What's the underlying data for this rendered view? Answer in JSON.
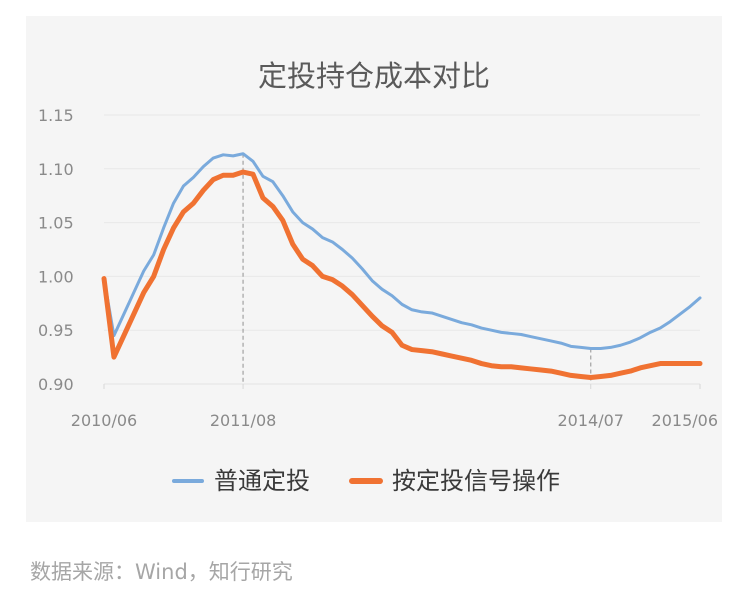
{
  "chart_data": {
    "type": "line",
    "title": "定投持仓成本对比",
    "xlabel": "",
    "ylabel": "",
    "ylim": [
      0.9,
      1.15
    ],
    "yticks": [
      "1.15",
      "1.10",
      "1.05",
      "1.00",
      "0.95",
      "0.90"
    ],
    "xrange": [
      "2010-06",
      "2015-06"
    ],
    "xtick_labels": [
      "2010/06",
      "2011/08",
      "2014/07",
      "2015/06"
    ],
    "grid": true,
    "legend_position": "bottom",
    "series": [
      {
        "name": "普通定投",
        "color": "#7aaadc",
        "points": [
          [
            "2010-06",
            0.998
          ],
          [
            "2010-07",
            0.945
          ],
          [
            "2010-08",
            0.965
          ],
          [
            "2010-09",
            0.985
          ],
          [
            "2010-10",
            1.005
          ],
          [
            "2010-11",
            1.02
          ],
          [
            "2010-12",
            1.045
          ],
          [
            "2011-01",
            1.068
          ],
          [
            "2011-02",
            1.084
          ],
          [
            "2011-03",
            1.092
          ],
          [
            "2011-04",
            1.102
          ],
          [
            "2011-05",
            1.11
          ],
          [
            "2011-06",
            1.113
          ],
          [
            "2011-07",
            1.112
          ],
          [
            "2011-08",
            1.114
          ],
          [
            "2011-09",
            1.107
          ],
          [
            "2011-10",
            1.093
          ],
          [
            "2011-11",
            1.088
          ],
          [
            "2011-12",
            1.075
          ],
          [
            "2012-01",
            1.06
          ],
          [
            "2012-02",
            1.05
          ],
          [
            "2012-03",
            1.044
          ],
          [
            "2012-04",
            1.036
          ],
          [
            "2012-05",
            1.032
          ],
          [
            "2012-06",
            1.025
          ],
          [
            "2012-07",
            1.017
          ],
          [
            "2012-08",
            1.007
          ],
          [
            "2012-09",
            0.996
          ],
          [
            "2012-10",
            0.988
          ],
          [
            "2012-11",
            0.982
          ],
          [
            "2012-12",
            0.974
          ],
          [
            "2013-01",
            0.969
          ],
          [
            "2013-02",
            0.967
          ],
          [
            "2013-03",
            0.966
          ],
          [
            "2013-04",
            0.963
          ],
          [
            "2013-05",
            0.96
          ],
          [
            "2013-06",
            0.957
          ],
          [
            "2013-07",
            0.955
          ],
          [
            "2013-08",
            0.952
          ],
          [
            "2013-09",
            0.95
          ],
          [
            "2013-10",
            0.948
          ],
          [
            "2013-11",
            0.947
          ],
          [
            "2013-12",
            0.946
          ],
          [
            "2014-01",
            0.944
          ],
          [
            "2014-02",
            0.942
          ],
          [
            "2014-03",
            0.94
          ],
          [
            "2014-04",
            0.938
          ],
          [
            "2014-05",
            0.935
          ],
          [
            "2014-06",
            0.934
          ],
          [
            "2014-07",
            0.933
          ],
          [
            "2014-08",
            0.933
          ],
          [
            "2014-09",
            0.934
          ],
          [
            "2014-10",
            0.936
          ],
          [
            "2014-11",
            0.939
          ],
          [
            "2014-12",
            0.943
          ],
          [
            "2015-01",
            0.948
          ],
          [
            "2015-02",
            0.952
          ],
          [
            "2015-03",
            0.958
          ],
          [
            "2015-04",
            0.965
          ],
          [
            "2015-05",
            0.972
          ],
          [
            "2015-06",
            0.98
          ]
        ]
      },
      {
        "name": "按定投信号操作",
        "color": "#f07232",
        "points": [
          [
            "2010-06",
            0.998
          ],
          [
            "2010-07",
            0.925
          ],
          [
            "2010-08",
            0.945
          ],
          [
            "2010-09",
            0.965
          ],
          [
            "2010-10",
            0.985
          ],
          [
            "2010-11",
            1.0
          ],
          [
            "2010-12",
            1.025
          ],
          [
            "2011-01",
            1.045
          ],
          [
            "2011-02",
            1.06
          ],
          [
            "2011-03",
            1.068
          ],
          [
            "2011-04",
            1.08
          ],
          [
            "2011-05",
            1.09
          ],
          [
            "2011-06",
            1.094
          ],
          [
            "2011-07",
            1.094
          ],
          [
            "2011-08",
            1.097
          ],
          [
            "2011-09",
            1.095
          ],
          [
            "2011-10",
            1.073
          ],
          [
            "2011-11",
            1.065
          ],
          [
            "2011-12",
            1.052
          ],
          [
            "2012-01",
            1.03
          ],
          [
            "2012-02",
            1.016
          ],
          [
            "2012-03",
            1.01
          ],
          [
            "2012-04",
            1.0
          ],
          [
            "2012-05",
            0.997
          ],
          [
            "2012-06",
            0.991
          ],
          [
            "2012-07",
            0.983
          ],
          [
            "2012-08",
            0.973
          ],
          [
            "2012-09",
            0.963
          ],
          [
            "2012-10",
            0.954
          ],
          [
            "2012-11",
            0.948
          ],
          [
            "2012-12",
            0.936
          ],
          [
            "2013-01",
            0.932
          ],
          [
            "2013-02",
            0.931
          ],
          [
            "2013-03",
            0.93
          ],
          [
            "2013-04",
            0.928
          ],
          [
            "2013-05",
            0.926
          ],
          [
            "2013-06",
            0.924
          ],
          [
            "2013-07",
            0.922
          ],
          [
            "2013-08",
            0.919
          ],
          [
            "2013-09",
            0.917
          ],
          [
            "2013-10",
            0.916
          ],
          [
            "2013-11",
            0.916
          ],
          [
            "2013-12",
            0.915
          ],
          [
            "2014-01",
            0.914
          ],
          [
            "2014-02",
            0.913
          ],
          [
            "2014-03",
            0.912
          ],
          [
            "2014-04",
            0.91
          ],
          [
            "2014-05",
            0.908
          ],
          [
            "2014-06",
            0.907
          ],
          [
            "2014-07",
            0.906
          ],
          [
            "2014-08",
            0.907
          ],
          [
            "2014-09",
            0.908
          ],
          [
            "2014-10",
            0.91
          ],
          [
            "2014-11",
            0.912
          ],
          [
            "2014-12",
            0.915
          ],
          [
            "2015-01",
            0.917
          ],
          [
            "2015-02",
            0.919
          ],
          [
            "2015-03",
            0.919
          ],
          [
            "2015-04",
            0.919
          ],
          [
            "2015-05",
            0.919
          ],
          [
            "2015-06",
            0.919
          ]
        ]
      }
    ],
    "markers": [
      "2011-08",
      "2014-07"
    ]
  },
  "source": "数据来源：Wind，知行研究"
}
